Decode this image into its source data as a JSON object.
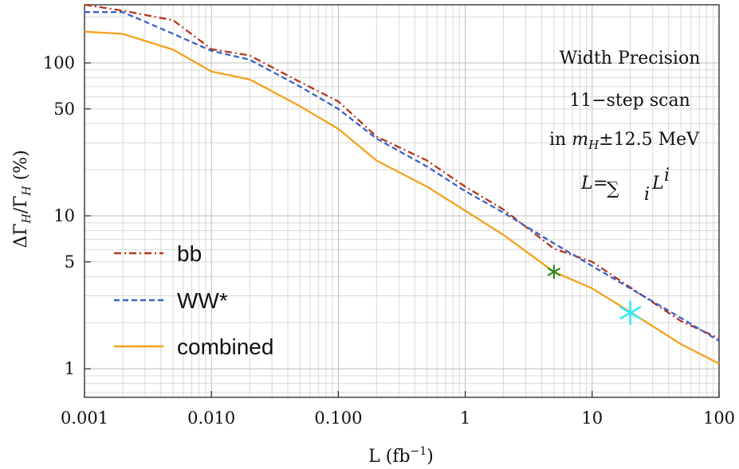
{
  "chart_data": {
    "type": "line",
    "x_scale": "log",
    "y_scale": "log",
    "xlim": [
      0.001,
      100
    ],
    "ylim": [
      0.65,
      240
    ],
    "grid": true,
    "xlabel_parts": {
      "main": "L (fb",
      "sup": "−1",
      "end": ")"
    },
    "ylabel_parts": {
      "a": "ΔΓ",
      "asub": "H",
      "b": "/Γ",
      "bsub": "H",
      "c": " (%)"
    },
    "x_ticks": [
      {
        "v": 0.001,
        "label": "0.001"
      },
      {
        "v": 0.01,
        "label": "0.010"
      },
      {
        "v": 0.1,
        "label": "0.100"
      },
      {
        "v": 1,
        "label": "1"
      },
      {
        "v": 10,
        "label": "10"
      },
      {
        "v": 100,
        "label": "100"
      }
    ],
    "y_ticks": [
      {
        "v": 1,
        "label": "1"
      },
      {
        "v": 5,
        "label": "5"
      },
      {
        "v": 10,
        "label": "10"
      },
      {
        "v": 50,
        "label": "50"
      },
      {
        "v": 100,
        "label": "100"
      }
    ],
    "annotations": {
      "line1": "Width Precision",
      "line2": "11−step scan",
      "line3_pre": "in ",
      "line3_m": "m",
      "line3_sub": "H",
      "line3_post": "±12.5 MeV",
      "line4_L": "L",
      "line4_eq": "=",
      "line4_sum": "∑",
      "line4_i": "i",
      "line4_L2": "L",
      "line4_sup": "i"
    },
    "x": [
      0.001,
      0.002,
      0.005,
      0.01,
      0.02,
      0.05,
      0.1,
      0.2,
      0.5,
      1,
      2,
      5,
      10,
      20,
      50,
      100
    ],
    "series": [
      {
        "name": "bb",
        "color": "#b5361c",
        "dash": "9,4,2,4",
        "values": [
          240,
          220,
          190,
          123,
          112,
          75,
          56,
          33,
          23,
          15.5,
          11,
          6.1,
          5.0,
          3.4,
          2.05,
          1.58
        ]
      },
      {
        "name": "WW*",
        "color": "#3b62c8",
        "dash": "7,4",
        "values": [
          215,
          215,
          155,
          120,
          105,
          70,
          50,
          32,
          21,
          14.5,
          10.5,
          6.6,
          4.7,
          3.35,
          2.15,
          1.52
        ]
      },
      {
        "name": "combined",
        "color": "#f5a21a",
        "dash": "",
        "values": [
          160,
          155,
          122,
          88,
          78,
          52,
          37,
          23,
          15.5,
          10.8,
          7.5,
          4.3,
          3.35,
          2.35,
          1.45,
          1.08
        ]
      }
    ],
    "markers": [
      {
        "x": 5,
        "y": 4.3,
        "color": "#2e8b23",
        "symbol": "*",
        "size": "small"
      },
      {
        "x": 20,
        "y": 2.32,
        "color": "#35e8f0",
        "symbol": "*",
        "size": "large"
      }
    ],
    "legend": {
      "placement": "bottom-left",
      "entries": [
        "bb",
        "WW*",
        "combined"
      ]
    }
  }
}
